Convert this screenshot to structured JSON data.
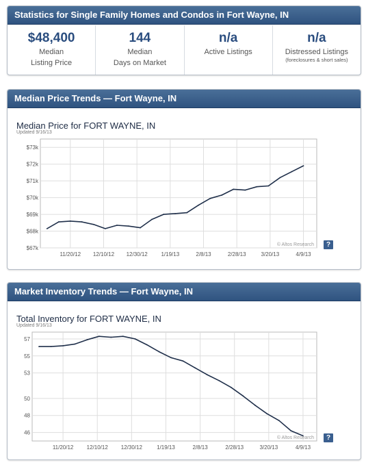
{
  "stats_panel": {
    "title": "Statistics for Single Family Homes and Condos in Fort Wayne, IN",
    "stats": [
      {
        "value": "$48,400",
        "label1": "Median",
        "label2": "Listing Price",
        "sub": ""
      },
      {
        "value": "144",
        "label1": "Median",
        "label2": "Days on Market",
        "sub": ""
      },
      {
        "value": "n/a",
        "label1": "Active Listings",
        "label2": "",
        "sub": ""
      },
      {
        "value": "n/a",
        "label1": "Distressed Listings",
        "label2": "",
        "sub": "(foreclosures & short sales)"
      }
    ]
  },
  "price_panel": {
    "header": "Median Price Trends — Fort Wayne, IN",
    "help": "?"
  },
  "inventory_panel": {
    "header": "Market Inventory Trends — Fort Wayne, IN",
    "help": "?"
  },
  "colors": {
    "header_bg": "#34588a",
    "line": "#1f2f4a",
    "accent_value": "#2a4d7f"
  },
  "chart_data": [
    {
      "type": "line",
      "title": "Median Price for FORT WAYNE, IN",
      "subtitle": "Updated 9/16/13",
      "watermark": "© Altos Research",
      "x_ticks": [
        "11/20/12",
        "12/10/12",
        "12/30/12",
        "1/19/13",
        "2/8/13",
        "2/28/13",
        "3/20/13",
        "4/9/13"
      ],
      "y_ticks": [
        "$67k",
        "$68k",
        "$69k",
        "$70k",
        "$71k",
        "$72k",
        "$73k"
      ],
      "ylim": [
        67000,
        73500
      ],
      "xlim": [
        "2012-11-02",
        "2013-04-17"
      ],
      "grid": true,
      "series": [
        {
          "x": [
            "2012-11-06",
            "2012-11-13",
            "2012-11-20",
            "2012-11-27",
            "2012-12-04",
            "2012-12-11",
            "2012-12-18",
            "2012-12-25",
            "2013-01-01",
            "2013-01-08",
            "2013-01-15",
            "2013-01-22",
            "2013-01-29",
            "2013-02-05",
            "2013-02-12",
            "2013-02-19",
            "2013-02-26",
            "2013-03-05",
            "2013-03-12",
            "2013-03-19",
            "2013-03-26",
            "2013-04-02",
            "2013-04-09"
          ],
          "values": [
            68150,
            68550,
            68600,
            68550,
            68400,
            68150,
            68350,
            68300,
            68200,
            68700,
            69000,
            69050,
            69100,
            69550,
            69950,
            70150,
            70500,
            70450,
            70650,
            70700,
            71200,
            71550,
            71900
          ]
        }
      ]
    },
    {
      "type": "line",
      "title": "Total Inventory for FORT WAYNE, IN",
      "subtitle": "Updated 9/16/13",
      "watermark": "© Altos Research",
      "x_ticks": [
        "11/20/12",
        "12/10/12",
        "12/30/12",
        "1/19/13",
        "2/8/13",
        "2/28/13",
        "3/20/13",
        "4/9/13"
      ],
      "y_ticks": [
        "46",
        "48",
        "50",
        "53",
        "55",
        "57"
      ],
      "ylim": [
        45,
        57.8
      ],
      "xlim": [
        "2012-11-02",
        "2013-04-17"
      ],
      "grid": true,
      "series": [
        {
          "x": [
            "2012-11-06",
            "2012-11-13",
            "2012-11-20",
            "2012-11-27",
            "2012-12-04",
            "2012-12-11",
            "2012-12-18",
            "2012-12-25",
            "2013-01-01",
            "2013-01-08",
            "2013-01-15",
            "2013-01-22",
            "2013-01-29",
            "2013-02-05",
            "2013-02-12",
            "2013-02-19",
            "2013-02-26",
            "2013-03-05",
            "2013-03-12",
            "2013-03-19",
            "2013-03-26",
            "2013-04-02",
            "2013-04-09"
          ],
          "values": [
            56.1,
            56.1,
            56.2,
            56.4,
            56.9,
            57.3,
            57.2,
            57.3,
            57.0,
            56.3,
            55.5,
            54.8,
            54.4,
            53.6,
            52.8,
            52.1,
            51.3,
            50.3,
            49.2,
            48.2,
            47.4,
            46.2,
            45.6
          ]
        }
      ]
    }
  ]
}
